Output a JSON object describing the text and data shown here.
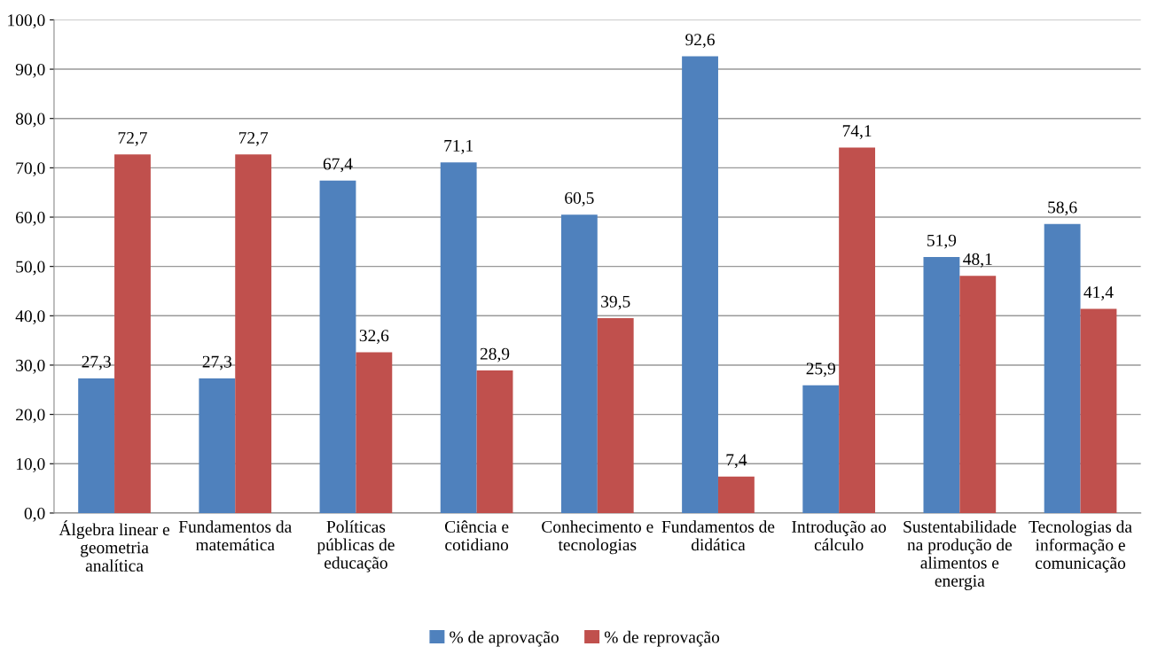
{
  "chart_data": {
    "type": "bar",
    "categories": [
      "Álgebra linear e\ngeometria\nanalítica",
      "Fundamentos da\nmatemática",
      "Políticas\npúblicas de\neducação",
      "Ciência e\ncotidiano",
      "Conhecimento e\ntecnologias",
      "Fundamentos de\ndidática",
      "Introdução ao\ncálculo",
      "Sustentabilidade\nna produção de\nalimentos e\nenergia",
      "Tecnologias da\ninformação e\ncomunicação"
    ],
    "series": [
      {
        "name": "% de aprovação",
        "color": "#4f81bd",
        "values": [
          27.3,
          27.3,
          67.4,
          71.1,
          60.5,
          92.6,
          25.9,
          51.9,
          58.6
        ],
        "value_labels": [
          "27,3",
          "27,3",
          "67,4",
          "71,1",
          "60,5",
          "92,6",
          "25,9",
          "51,9",
          "58,6"
        ]
      },
      {
        "name": "% de reprovação",
        "color": "#c0504d",
        "values": [
          72.7,
          72.7,
          32.6,
          28.9,
          39.5,
          7.4,
          74.1,
          48.1,
          41.4
        ],
        "value_labels": [
          "72,7",
          "72,7",
          "32,6",
          "28,9",
          "39,5",
          "7,4",
          "74,1",
          "48,1",
          "41,4"
        ]
      }
    ],
    "ylim": [
      0,
      100
    ],
    "yticks": [
      {
        "value": 0,
        "label": "0,0"
      },
      {
        "value": 10,
        "label": "10,0"
      },
      {
        "value": 20,
        "label": "20,0"
      },
      {
        "value": 30,
        "label": "30,0"
      },
      {
        "value": 40,
        "label": "40,0"
      },
      {
        "value": 50,
        "label": "50,0"
      },
      {
        "value": 60,
        "label": "60,0"
      },
      {
        "value": 70,
        "label": "70,0"
      },
      {
        "value": 80,
        "label": "80,0"
      },
      {
        "value": 90,
        "label": "90,0"
      },
      {
        "value": 100,
        "label": "100,0"
      }
    ],
    "grid": "y",
    "legend": "bottom"
  }
}
